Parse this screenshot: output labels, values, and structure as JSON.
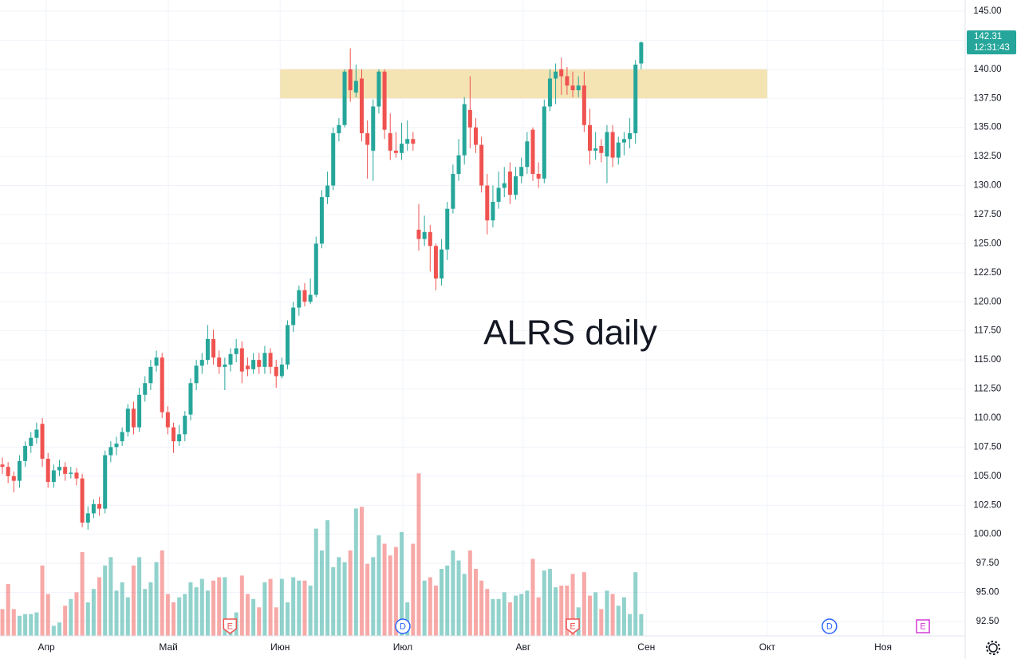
{
  "chart_data": {
    "type": "candlestick",
    "annotation": "ALRS daily",
    "open": [
      106,
      105.8,
      105,
      104.6,
      106.3,
      107.6,
      108.3,
      109.5,
      106.5,
      104.5,
      105.5,
      105.8,
      105.2,
      105.3,
      104.8,
      101,
      101.8,
      102.6,
      102.2,
      106.8,
      107.5,
      108,
      108.8,
      110.8,
      109.2,
      112,
      113,
      114.5,
      115.2,
      110.5,
      109.2,
      108,
      108.6,
      110.3,
      113,
      114.5,
      115,
      116.8,
      115.2,
      114.4,
      114.6,
      115.5,
      116,
      114.5,
      114.2,
      115,
      114.4,
      115.6,
      114.4,
      113.6,
      114.6,
      118,
      119.5,
      121,
      120,
      120.6,
      125,
      129,
      130,
      134.5,
      135.2,
      140,
      138,
      139.2,
      134.5,
      133,
      136.8,
      139.8,
      134.5,
      133,
      132.8,
      133.6,
      134,
      126.2,
      125.4,
      126,
      124.8,
      122,
      124.5,
      128,
      131,
      132.6,
      136.5,
      135,
      133.5,
      130,
      127,
      128.6,
      129.8,
      131.2,
      129.2,
      130.8,
      131.6,
      134.8,
      131,
      130.6,
      136.8,
      139.2,
      140,
      139.4,
      138.6,
      138.2,
      138.6,
      135.2,
      133,
      133.4,
      132.5,
      134.6,
      132.4,
      133.7,
      134,
      134.5,
      140.5
    ],
    "high": [
      106.6,
      106.2,
      105.4,
      106.8,
      108,
      108.8,
      109.6,
      110,
      107,
      106,
      106.4,
      106.2,
      105.8,
      105.7,
      105.2,
      102.4,
      103,
      103.2,
      107.2,
      108,
      108.4,
      109.2,
      111.2,
      111.4,
      112.6,
      113.6,
      115,
      115.8,
      115.6,
      111,
      109.6,
      109.4,
      110.6,
      113.4,
      115,
      115.6,
      118,
      117.6,
      115.8,
      115.2,
      116,
      116.8,
      116.6,
      115.2,
      115.6,
      115.6,
      116.2,
      116,
      115,
      115.2,
      118.4,
      120,
      121.4,
      121.6,
      122,
      125.6,
      129.6,
      131.2,
      135,
      135.8,
      140,
      141.8,
      140.4,
      140,
      135.6,
      137.4,
      140,
      140,
      136.2,
      134.6,
      135.4,
      135.6,
      134.6,
      128.4,
      127.4,
      126.6,
      125,
      125.4,
      128.6,
      131.8,
      134,
      137.6,
      139.4,
      135.8,
      134.2,
      131,
      130,
      131.2,
      131.6,
      132,
      131.6,
      132.4,
      134.6,
      135,
      132,
      137.4,
      140,
      140.5,
      141,
      140.2,
      139.8,
      139.4,
      139.8,
      136.6,
      134.6,
      134,
      135.2,
      135.2,
      134.2,
      134.6,
      135.8,
      140.8,
      142.4
    ],
    "low": [
      105.2,
      104.4,
      103.6,
      104,
      105.8,
      107,
      107.8,
      105.8,
      104,
      104,
      105,
      104.6,
      104.8,
      104.2,
      100.6,
      100.4,
      101.4,
      101.6,
      101.8,
      106.2,
      106.8,
      107.6,
      108.4,
      108.6,
      108.8,
      111.4,
      112.4,
      114,
      110,
      108.6,
      107,
      107.6,
      108,
      109.8,
      112.4,
      113.8,
      114.6,
      114.6,
      113.8,
      112.4,
      114,
      114.8,
      113,
      113.6,
      113.8,
      113.8,
      113.8,
      113.8,
      112.6,
      113.4,
      114.2,
      117.4,
      118.8,
      119.6,
      119.8,
      120.4,
      124.6,
      128.4,
      129.6,
      133.8,
      135,
      137.2,
      137.6,
      133.8,
      130.6,
      130.4,
      136.2,
      134,
      132.2,
      132.4,
      132.2,
      133,
      133,
      124.4,
      124.8,
      122.6,
      121,
      121.4,
      123.6,
      127.6,
      130.4,
      131.8,
      133.2,
      132.8,
      129.4,
      125.8,
      126.4,
      128,
      129,
      128.4,
      128.8,
      130.2,
      131,
      130.4,
      129.8,
      130.2,
      136.4,
      137,
      137.8,
      137.8,
      137.6,
      137.6,
      134.6,
      131.8,
      132.2,
      132,
      130.2,
      131.6,
      131.8,
      132.6,
      133.2,
      133.6,
      140
    ],
    "close": [
      105.8,
      105,
      104.6,
      106.3,
      107.6,
      108.3,
      109,
      106.5,
      104.5,
      105.5,
      105.8,
      105.2,
      105.3,
      104.8,
      101,
      101.8,
      102.6,
      102.2,
      106.8,
      107.5,
      107.8,
      108.8,
      110.8,
      109.2,
      112,
      113,
      114.4,
      115.2,
      110.5,
      109.2,
      108,
      108.6,
      110.2,
      113,
      114.5,
      115,
      116.8,
      115.2,
      114.4,
      114.6,
      115.5,
      116,
      114,
      114.2,
      115,
      114.4,
      115.6,
      114.4,
      113.6,
      114.6,
      118,
      119.5,
      121,
      120,
      120.6,
      125,
      129,
      130,
      134.5,
      135.2,
      139.8,
      138.2,
      139,
      134.5,
      133.5,
      136.8,
      139.8,
      134.8,
      133,
      132.8,
      133.6,
      134,
      133.6,
      125.4,
      126,
      124.8,
      122,
      124.5,
      128,
      131,
      132.6,
      137,
      135,
      133.5,
      130,
      127,
      128.6,
      129.8,
      130.2,
      129.2,
      130.8,
      131.6,
      133.8,
      131,
      130.6,
      136.8,
      139.2,
      139.8,
      139.4,
      138.6,
      138.2,
      138.6,
      135.2,
      133,
      133.2,
      132.8,
      134.6,
      132.4,
      133.7,
      134,
      134.5,
      140.4,
      142.31
    ],
    "volume": [
      16,
      31,
      16,
      12,
      13,
      13,
      14,
      42,
      25,
      6,
      8,
      18,
      22,
      26,
      50,
      20,
      28,
      35,
      42,
      47,
      27,
      32,
      23,
      42,
      47,
      28,
      32,
      44,
      51,
      25,
      20,
      23,
      25,
      32,
      29,
      34,
      27,
      33,
      35,
      35,
      8,
      14,
      36,
      25,
      22,
      17,
      32,
      34,
      17,
      34,
      20,
      35,
      33,
      33,
      30,
      64,
      51,
      69,
      41,
      47,
      44,
      51,
      76,
      77,
      43,
      47,
      60,
      55,
      48,
      53,
      62,
      20,
      55,
      97,
      33,
      35,
      30,
      40,
      42,
      51,
      45,
      37,
      51,
      40,
      33,
      28,
      22,
      22,
      26,
      20,
      24,
      25,
      27,
      46,
      23,
      39,
      40,
      29,
      30,
      30,
      37,
      17,
      38,
      24,
      26,
      16,
      27,
      25,
      18,
      23,
      13,
      38,
      13
    ],
    "volume_lim": [
      0,
      100
    ],
    "up_color": "#26a69a",
    "down_color": "#ef5350",
    "xlim": [
      -0.42,
      168.8
    ],
    "xticks": [
      {
        "value": 7.7,
        "label": "Апр"
      },
      {
        "value": 29.1,
        "label": "Май"
      },
      {
        "value": 48.7,
        "label": "Июн"
      },
      {
        "value": 70.2,
        "label": "Июл"
      },
      {
        "value": 91.3,
        "label": "Авг"
      },
      {
        "value": 112.9,
        "label": "Сен"
      },
      {
        "value": 134.1,
        "label": "Окт"
      },
      {
        "value": 154.4,
        "label": "Ноя"
      }
    ],
    "ylim": [
      91.26,
      145.96
    ],
    "yticks": [
      {
        "value": 92.5,
        "label": "92.50"
      },
      {
        "value": 95,
        "label": "95.00"
      },
      {
        "value": 97.5,
        "label": "97.50"
      },
      {
        "value": 100,
        "label": "100.00"
      },
      {
        "value": 102.5,
        "label": "102.50"
      },
      {
        "value": 105,
        "label": "105.00"
      },
      {
        "value": 107.5,
        "label": "107.50"
      },
      {
        "value": 110,
        "label": "110.00"
      },
      {
        "value": 112.5,
        "label": "112.50"
      },
      {
        "value": 115,
        "label": "115.00"
      },
      {
        "value": 117.5,
        "label": "117.50"
      },
      {
        "value": 120,
        "label": "120.00"
      },
      {
        "value": 122.5,
        "label": "122.50"
      },
      {
        "value": 125,
        "label": "125.00"
      },
      {
        "value": 127.5,
        "label": "127.50"
      },
      {
        "value": 130,
        "label": "130.00"
      },
      {
        "value": 132.5,
        "label": "132.50"
      },
      {
        "value": 135,
        "label": "135.00"
      },
      {
        "value": 137.5,
        "label": "137.50"
      },
      {
        "value": 140,
        "label": "140.00"
      },
      {
        "value": 142.5,
        "label": "142.50"
      },
      {
        "value": 145,
        "label": "145.00"
      }
    ],
    "grid": true,
    "zone": {
      "y": [
        137.5,
        140
      ],
      "x": [
        48.7,
        134.1
      ],
      "color": "#f2dea6"
    },
    "events": [
      {
        "label": "E",
        "x": 39.9,
        "shape": "flag",
        "color": "#ef5350"
      },
      {
        "label": "D",
        "x": 70.2,
        "shape": "circle",
        "color": "#2962ff"
      },
      {
        "label": "E",
        "x": 100,
        "shape": "flag",
        "color": "#ef5350"
      },
      {
        "label": "D",
        "x": 145,
        "shape": "circle",
        "color": "#2962ff"
      },
      {
        "label": "E",
        "x": 161.4,
        "shape": "square",
        "color": "#d43ad8"
      }
    ],
    "last_price": 142.31,
    "last_time": "12:31:43"
  }
}
